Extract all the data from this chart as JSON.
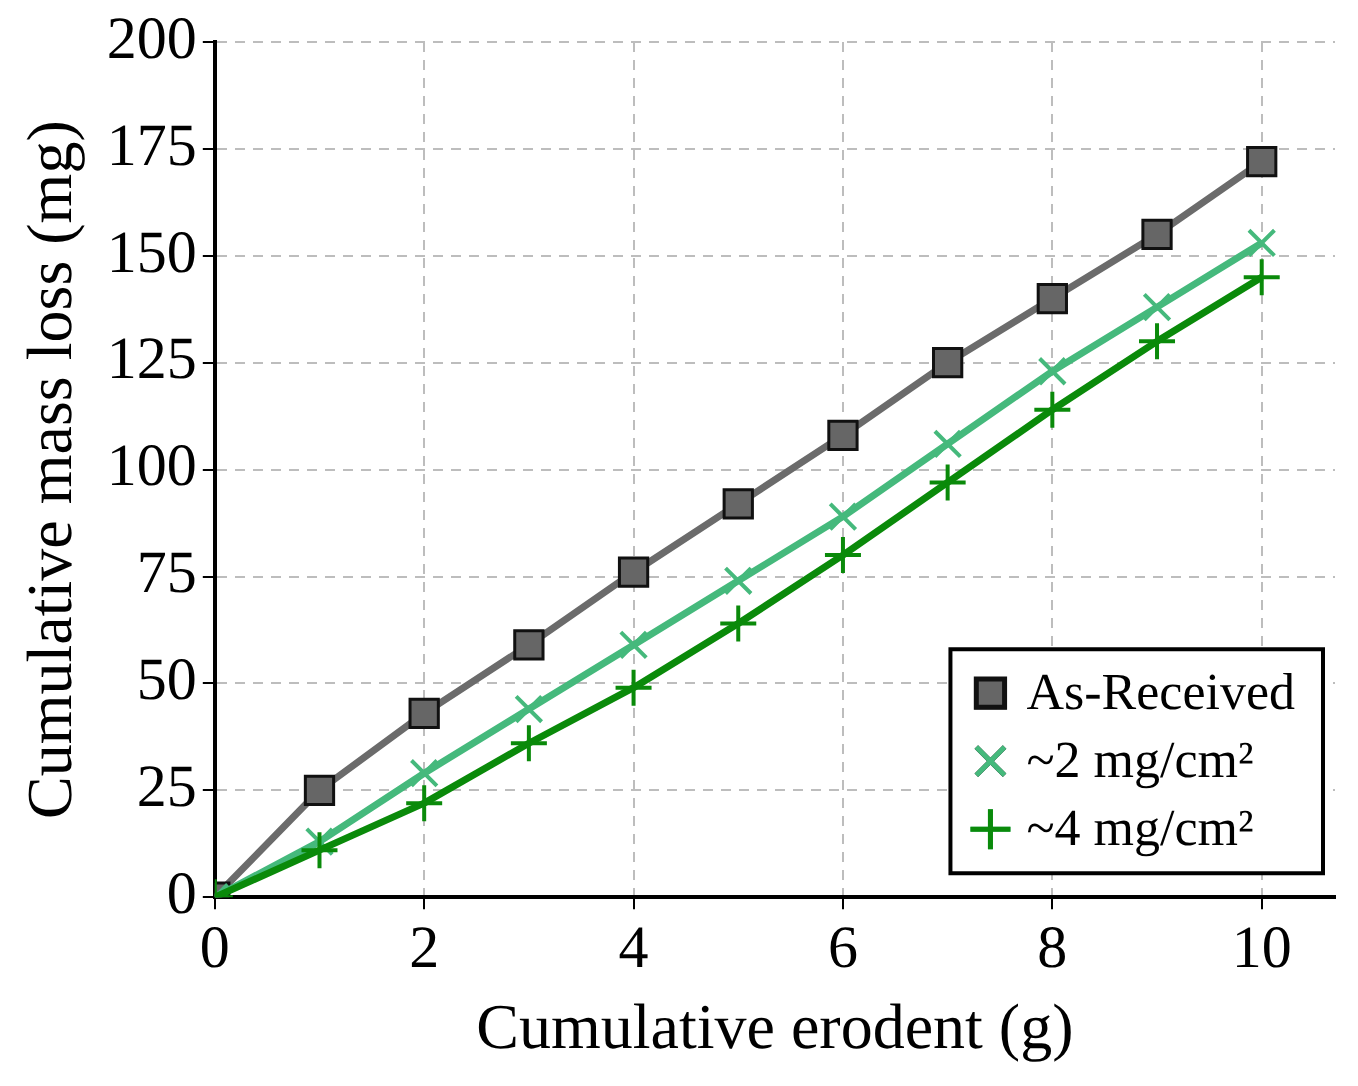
{
  "chart_data": {
    "type": "line",
    "xlabel": "Cumulative erodent (g)",
    "ylabel": "Cumulative mass loss (mg)",
    "x": [
      0,
      1,
      2,
      3,
      4,
      5,
      6,
      7,
      8,
      9,
      10
    ],
    "series": [
      {
        "name": "As-Received",
        "color": "#6b6b6b",
        "marker": "square",
        "values": [
          0,
          25,
          43,
          59,
          76,
          92,
          108,
          125,
          140,
          155,
          172
        ]
      },
      {
        "name": "~2 mg/cm²",
        "color": "#45b97c",
        "marker": "cross",
        "values": [
          0,
          13,
          29,
          44,
          59,
          74,
          89,
          106,
          123,
          138,
          153
        ]
      },
      {
        "name": "~4 mg/cm²",
        "color": "#0a8a0a",
        "marker": "plus",
        "values": [
          0,
          11,
          22,
          36,
          49,
          64,
          80,
          97,
          114,
          130,
          145
        ]
      }
    ],
    "xlim": [
      0,
      10.7
    ],
    "xticks": [
      0,
      2,
      4,
      6,
      8,
      10
    ],
    "ylim": [
      0,
      200
    ],
    "yticks": [
      0,
      25,
      50,
      75,
      100,
      125,
      150,
      175,
      200
    ],
    "grid": true,
    "legend": "bottom right",
    "line_style": "solid"
  }
}
